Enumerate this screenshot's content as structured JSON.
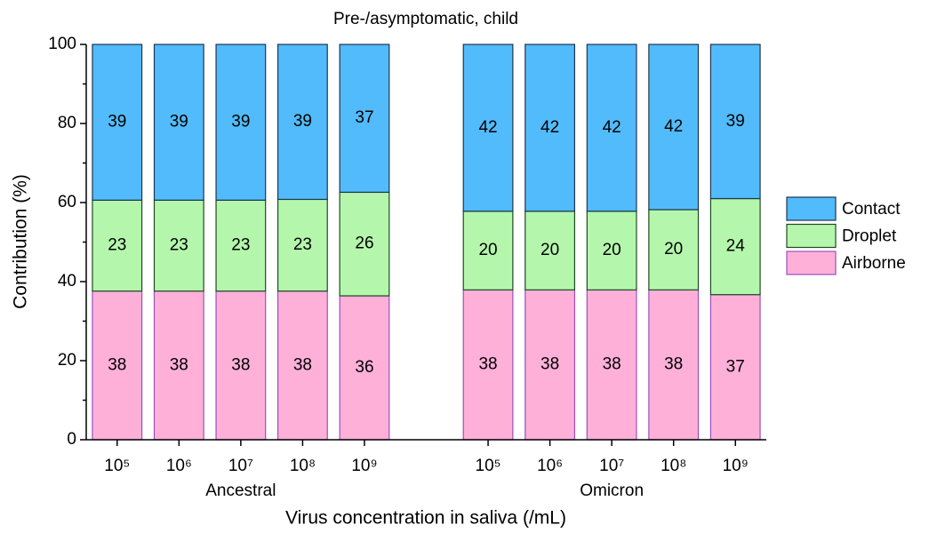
{
  "chart_data": {
    "type": "stacked_bar",
    "title": "Pre-/asymptomatic, child",
    "x_label": "Virus concentration in saliva (/mL)",
    "y_label": "Contribution (%)",
    "categories": [
      "10⁵",
      "10⁶",
      "10⁷",
      "10⁸",
      "10⁹",
      null,
      "10⁵",
      "10⁶",
      "10⁷",
      "10⁸",
      "10⁹"
    ],
    "group_labels": [
      "Ancestral",
      "Omicron"
    ],
    "series": [
      {
        "name": "Contact",
        "color": "#52bbfb",
        "edge": "#1f3550",
        "values": [
          39.4,
          39.4,
          39.4,
          39.2,
          37.4,
          null,
          42.2,
          42.2,
          42.2,
          41.8,
          39.0
        ],
        "value_labels": [
          "39",
          "39",
          "39",
          "39",
          "37",
          null,
          "42",
          "42",
          "42",
          "42",
          "39"
        ]
      },
      {
        "name": "Droplet",
        "color": "#b4f7ac",
        "edge": "#1f4a22",
        "values": [
          23.0,
          23.0,
          23.0,
          23.2,
          26.2,
          null,
          19.9,
          19.9,
          19.9,
          20.3,
          24.3
        ],
        "value_labels": [
          "23",
          "23",
          "23",
          "23",
          "26",
          null,
          "20",
          "20",
          "20",
          "20",
          "24"
        ]
      },
      {
        "name": "Airborne",
        "color": "#ffb0d9",
        "edge": "#9a4fc0",
        "values": [
          37.6,
          37.6,
          37.6,
          37.6,
          36.4,
          null,
          37.9,
          37.9,
          37.9,
          37.9,
          36.7
        ],
        "value_labels": [
          "38",
          "38",
          "38",
          "38",
          "36",
          null,
          "38",
          "38",
          "38",
          "38",
          "37"
        ]
      }
    ],
    "ylim": [
      0,
      100
    ],
    "yticks": [
      0,
      20,
      40,
      60,
      80,
      100
    ],
    "yticks_minor": [
      10,
      30,
      50,
      70,
      90
    ],
    "legend": "right"
  }
}
